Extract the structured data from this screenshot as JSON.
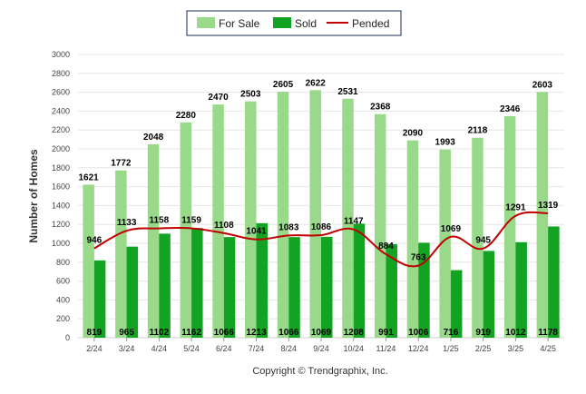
{
  "chart_data": {
    "type": "bar",
    "categories": [
      "2/24",
      "3/24",
      "4/24",
      "5/24",
      "6/24",
      "7/24",
      "8/24",
      "9/24",
      "10/24",
      "11/24",
      "12/24",
      "1/25",
      "2/25",
      "3/25",
      "4/25"
    ],
    "series": [
      {
        "name": "For Sale",
        "type": "bar",
        "color": "#99d98a",
        "values": [
          1621,
          1772,
          2048,
          2280,
          2470,
          2503,
          2605,
          2622,
          2531,
          2368,
          2090,
          1993,
          2118,
          2346,
          2603
        ]
      },
      {
        "name": "Sold",
        "type": "bar",
        "color": "#13a323",
        "values": [
          819,
          965,
          1102,
          1162,
          1066,
          1213,
          1066,
          1069,
          1208,
          991,
          1006,
          716,
          919,
          1012,
          1178
        ]
      },
      {
        "name": "Pended",
        "type": "line",
        "color": "#c00000",
        "values": [
          946,
          1133,
          1158,
          1159,
          1108,
          1041,
          1083,
          1086,
          1147,
          884,
          763,
          1069,
          945,
          1291,
          1319
        ]
      }
    ],
    "ylabel": "Number of Homes",
    "xlabel": "",
    "ylim": [
      0,
      3000
    ],
    "yticks": [
      0,
      200,
      400,
      600,
      800,
      1000,
      1200,
      1400,
      1600,
      1800,
      2000,
      2200,
      2400,
      2600,
      2800,
      3000
    ],
    "grid": true,
    "legend_position": "top-center"
  },
  "footer": {
    "copyright": "Copyright © Trendgraphix, Inc."
  }
}
